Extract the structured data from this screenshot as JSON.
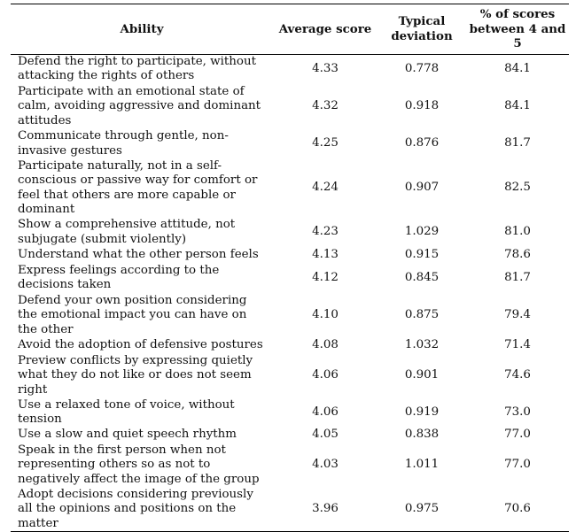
{
  "table": {
    "headers": {
      "ability": "Ability",
      "average": "Average score",
      "deviation": "Typical deviation",
      "percent": "% of scores between 4 and 5"
    },
    "rows": [
      {
        "ability": "Defend the right to participate, without attacking the rights of others",
        "average": "4.33",
        "deviation": "0.778",
        "percent": "84.1"
      },
      {
        "ability": "Participate with an emotional state of calm, avoiding aggressive and dominant attitudes",
        "average": "4.32",
        "deviation": "0.918",
        "percent": "84.1"
      },
      {
        "ability": "Communicate through gentle, non-invasive gestures",
        "average": "4.25",
        "deviation": "0.876",
        "percent": "81.7"
      },
      {
        "ability": "Participate naturally, not in a self-conscious or passive way for comfort or feel that others are more capable or dominant",
        "average": "4.24",
        "deviation": "0.907",
        "percent": "82.5"
      },
      {
        "ability": "Show a comprehensive attitude, not subjugate (submit violently)",
        "average": "4.23",
        "deviation": "1.029",
        "percent": "81.0"
      },
      {
        "ability": "Understand what the other person feels",
        "average": "4.13",
        "deviation": "0.915",
        "percent": "78.6"
      },
      {
        "ability": "Express feelings according to the decisions taken",
        "average": "4.12",
        "deviation": "0.845",
        "percent": "81.7"
      },
      {
        "ability": "Defend your own position considering the emotional impact you can have on the other",
        "average": "4.10",
        "deviation": "0.875",
        "percent": "79.4"
      },
      {
        "ability": "Avoid the adoption of defensive postures",
        "average": "4.08",
        "deviation": "1.032",
        "percent": "71.4"
      },
      {
        "ability": "Preview conflicts by expressing quietly what they do not like or does not seem right",
        "average": "4.06",
        "deviation": "0.901",
        "percent": "74.6"
      },
      {
        "ability": "Use a relaxed tone of voice, without tension",
        "average": "4.06",
        "deviation": "0.919",
        "percent": "73.0"
      },
      {
        "ability": "Use a slow and quiet speech rhythm",
        "average": "4.05",
        "deviation": "0.838",
        "percent": "77.0"
      },
      {
        "ability": "Speak in the first person when not representing others so as not to negatively affect the image of the group",
        "average": "4.03",
        "deviation": "1.011",
        "percent": "77.0"
      },
      {
        "ability": "Adopt decisions considering previously all the opinions and positions on the matter",
        "average": "3.96",
        "deviation": "0.975",
        "percent": "70.6"
      }
    ]
  }
}
